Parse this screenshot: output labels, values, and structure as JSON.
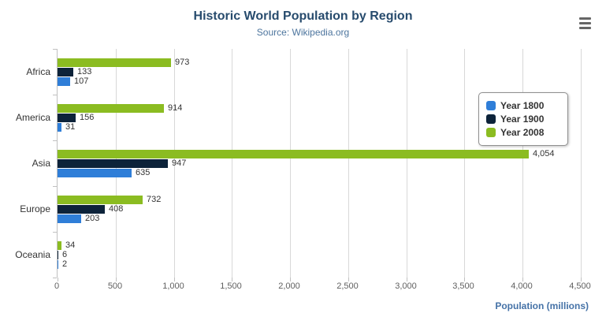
{
  "header": {
    "title": "Historic World Population by Region",
    "subtitle": "Source: Wikipedia.org"
  },
  "chart_data": {
    "type": "bar",
    "orientation": "horizontal",
    "title": "Historic World Population by Region",
    "subtitle": "Source: Wikipedia.org",
    "categories": [
      "Africa",
      "America",
      "Asia",
      "Europe",
      "Oceania"
    ],
    "series": [
      {
        "name": "Year 1800",
        "color": "#2f7ed8",
        "values": [
          107,
          31,
          635,
          203,
          2
        ]
      },
      {
        "name": "Year 1900",
        "color": "#0d233a",
        "values": [
          133,
          156,
          947,
          408,
          6
        ]
      },
      {
        "name": "Year 2008",
        "color": "#8bbc21",
        "values": [
          973,
          914,
          4054,
          732,
          34
        ]
      }
    ],
    "bar_order_top_to_bottom": [
      "Year 2008",
      "Year 1900",
      "Year 1800"
    ],
    "data_labels": true,
    "xlabel": "Population (millions)",
    "ylabel": "",
    "xlim": [
      0,
      4500
    ],
    "x_ticks": [
      0,
      500,
      1000,
      1500,
      2000,
      2500,
      3000,
      3500,
      4000,
      4500
    ],
    "x_tick_labels": [
      "0",
      "500",
      "1,000",
      "1,500",
      "2,000",
      "2,500",
      "3,000",
      "3,500",
      "4,000",
      "4,500"
    ],
    "grid": true,
    "legend_position": "right"
  }
}
